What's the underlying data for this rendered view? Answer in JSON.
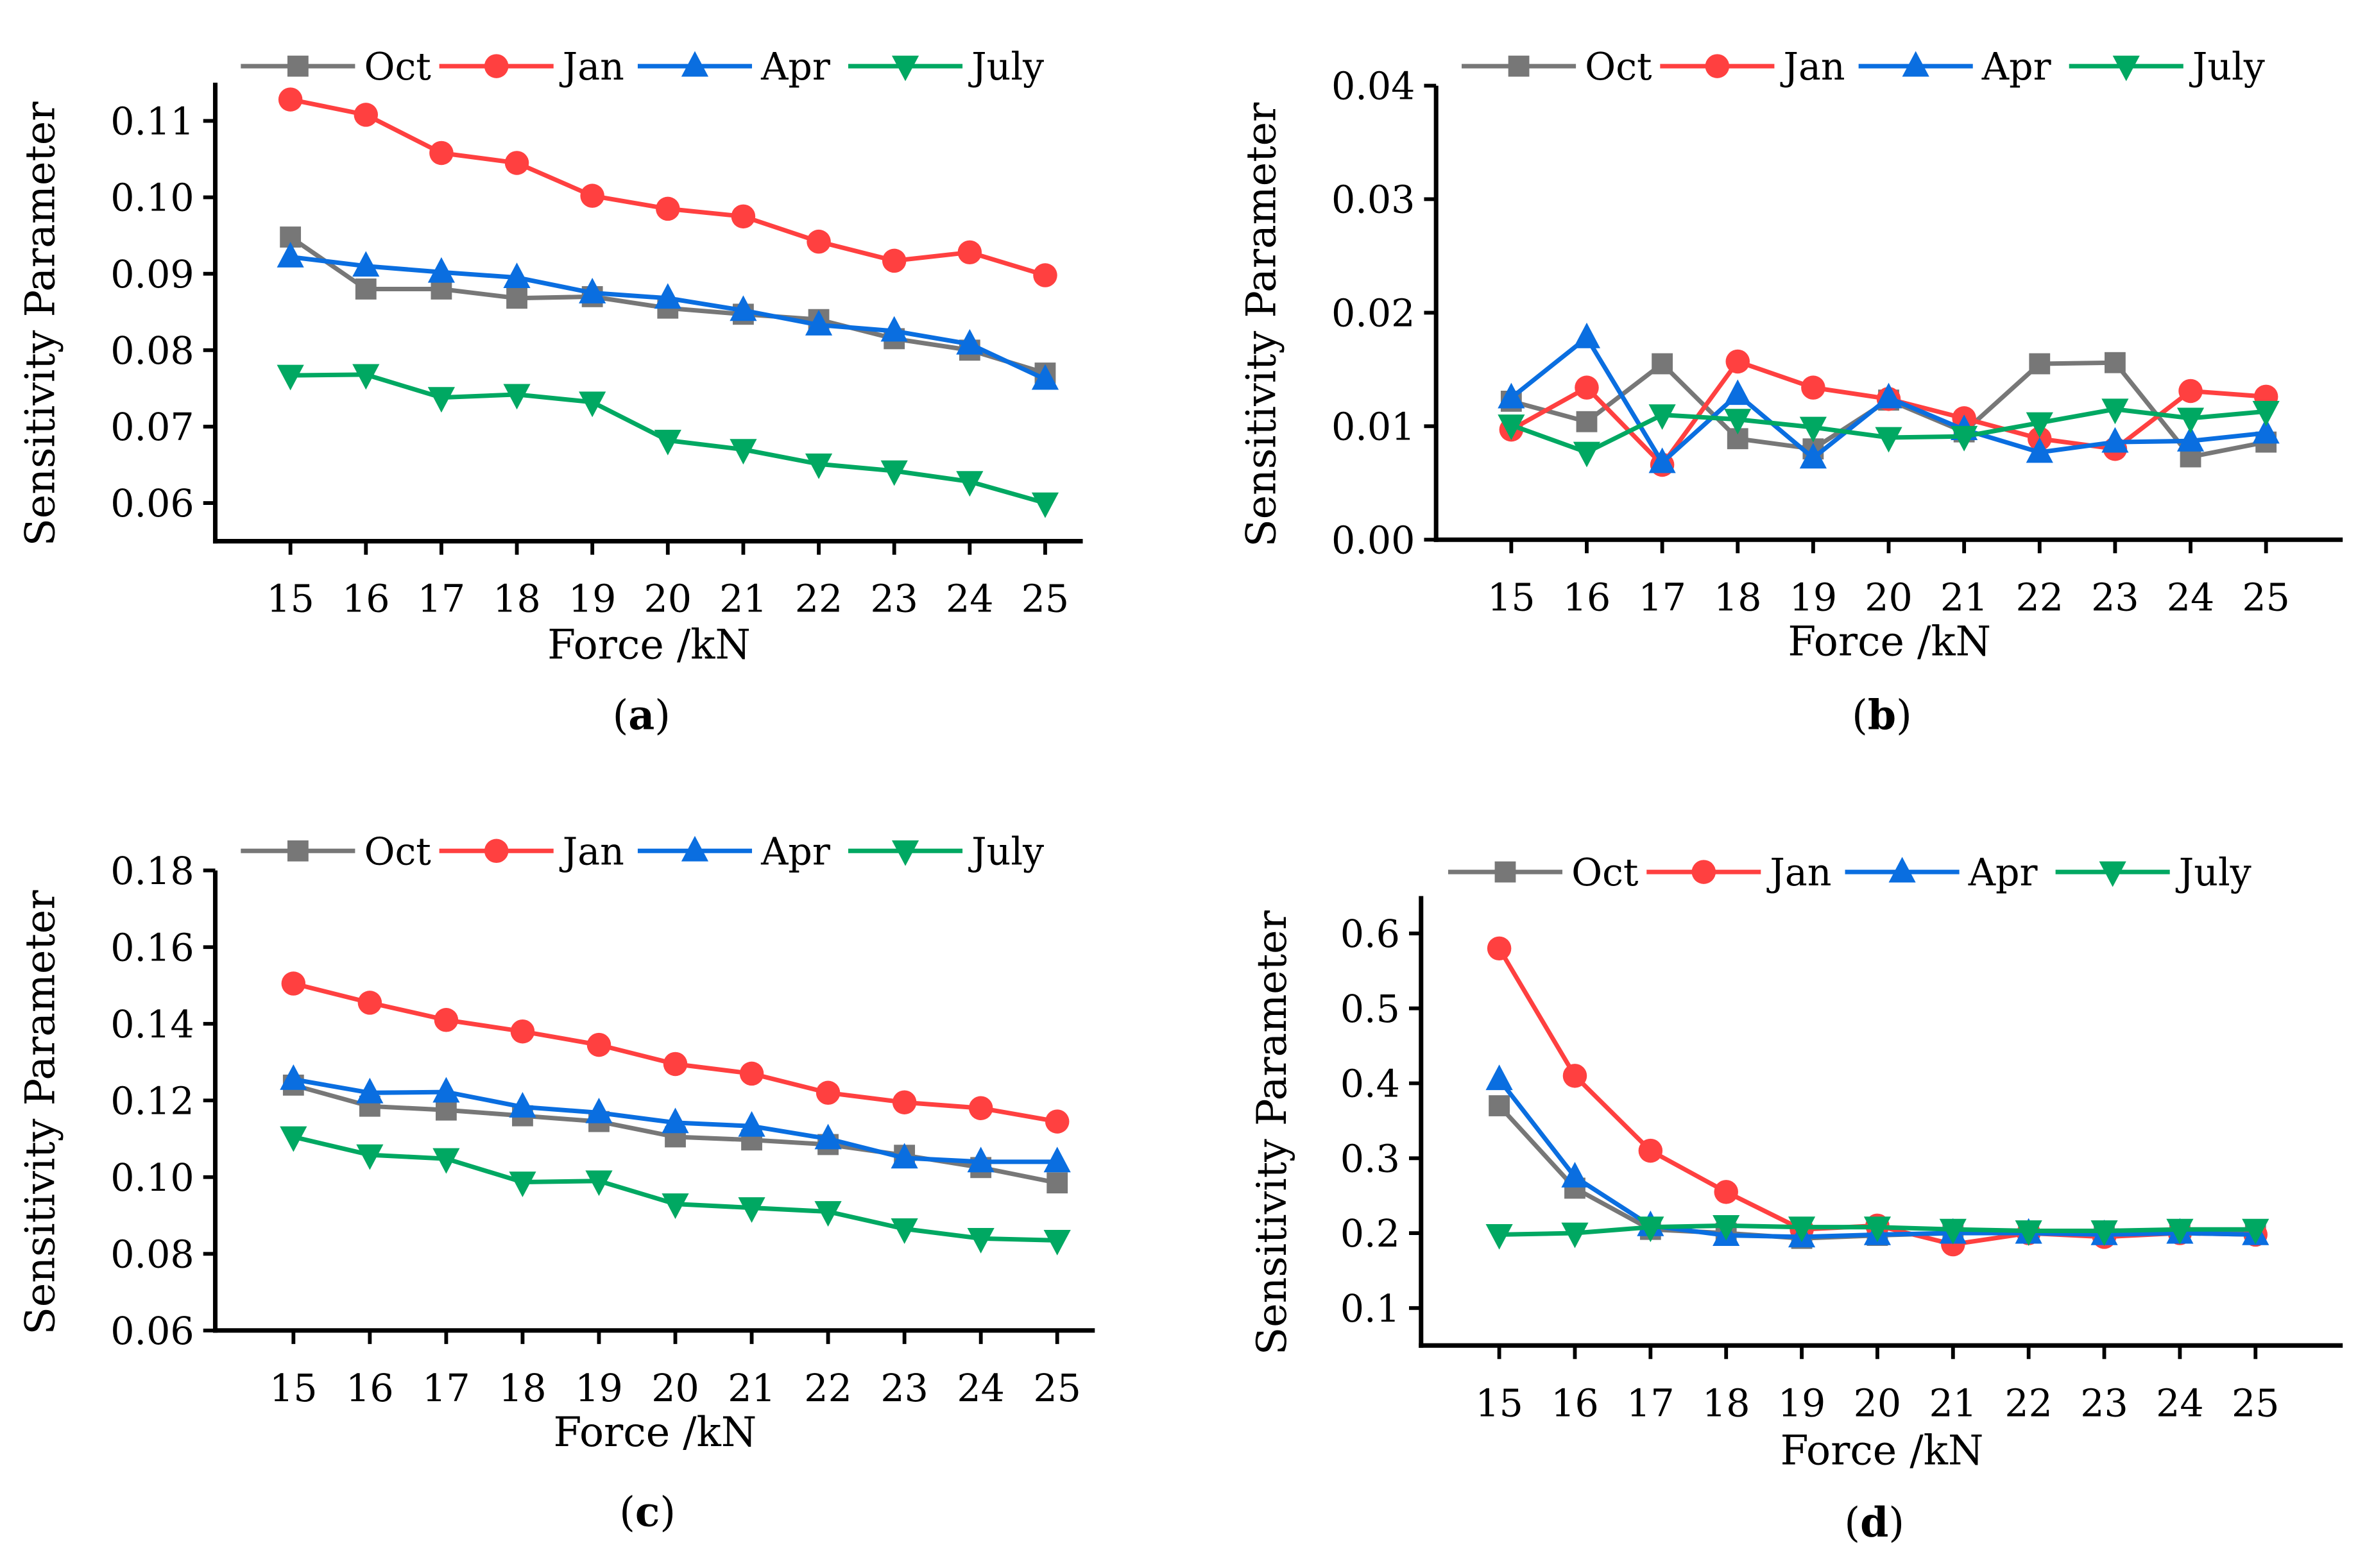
{
  "colors": {
    "Oct": "#777777",
    "Jan": "#ff4040",
    "Apr": "#0a6ee0",
    "July": "#00a862"
  },
  "markers": {
    "Oct": "square",
    "Jan": "circle",
    "Apr": "triangle-up",
    "July": "triangle-down"
  },
  "chart_data": [
    {
      "type": "line",
      "caption_letter": "a",
      "xlabel": "Force /kN",
      "ylabel": "Sensitivity Parameter",
      "x": [
        15,
        16,
        17,
        18,
        19,
        20,
        21,
        22,
        23,
        24,
        25
      ],
      "ylim": [
        0.055,
        0.115
      ],
      "yticks": [
        "0.06",
        "0.07",
        "0.08",
        "0.09",
        "0.10",
        "0.11"
      ],
      "series": [
        {
          "name": "Oct",
          "values": [
            0.0948,
            0.088,
            0.088,
            0.0868,
            0.087,
            0.0855,
            0.0847,
            0.084,
            0.0815,
            0.08,
            0.077
          ]
        },
        {
          "name": "Jan",
          "values": [
            0.1128,
            0.1108,
            0.1058,
            0.1045,
            0.1002,
            0.0985,
            0.0975,
            0.0942,
            0.0917,
            0.0928,
            0.0898
          ]
        },
        {
          "name": "Apr",
          "values": [
            0.0922,
            0.091,
            0.0902,
            0.0895,
            0.0875,
            0.0868,
            0.0852,
            0.0833,
            0.0825,
            0.0808,
            0.0762
          ]
        },
        {
          "name": "July",
          "values": [
            0.0767,
            0.0768,
            0.0738,
            0.0742,
            0.0732,
            0.0682,
            0.067,
            0.0651,
            0.0642,
            0.0628,
            0.06
          ]
        }
      ]
    },
    {
      "type": "line",
      "caption_letter": "b",
      "xlabel": "Force /kN",
      "ylabel": "Sensitivity Parameter",
      "x": [
        15,
        16,
        17,
        18,
        19,
        20,
        21,
        22,
        23,
        24,
        25
      ],
      "ylim": [
        0.0,
        0.04
      ],
      "yticks": [
        "0.00",
        "0.01",
        "0.02",
        "0.03",
        "0.04"
      ],
      "series": [
        {
          "name": "Oct",
          "values": [
            0.0122,
            0.0104,
            0.0155,
            0.0089,
            0.008,
            0.0123,
            0.0095,
            0.0155,
            0.0156,
            0.0073,
            0.0086
          ]
        },
        {
          "name": "Jan",
          "values": [
            0.0097,
            0.0134,
            0.0066,
            0.0157,
            0.0134,
            0.0124,
            0.0107,
            0.0089,
            0.008,
            0.0131,
            0.0126
          ]
        },
        {
          "name": "Apr",
          "values": [
            0.0125,
            0.0178,
            0.0068,
            0.0128,
            0.0072,
            0.0125,
            0.0097,
            0.0077,
            0.0086,
            0.0087,
            0.0094
          ]
        },
        {
          "name": "July",
          "values": [
            0.0101,
            0.0077,
            0.011,
            0.0106,
            0.0099,
            0.009,
            0.0091,
            0.0103,
            0.0115,
            0.0107,
            0.0113
          ]
        }
      ]
    },
    {
      "type": "line",
      "caption_letter": "c",
      "xlabel": "Force /kN",
      "ylabel": "Sensitivity Parameter",
      "x": [
        15,
        16,
        17,
        18,
        19,
        20,
        21,
        22,
        23,
        24,
        25
      ],
      "ylim": [
        0.06,
        0.18
      ],
      "yticks": [
        "0.06",
        "0.08",
        "0.10",
        "0.12",
        "0.14",
        "0.16",
        "0.18"
      ],
      "series": [
        {
          "name": "Oct",
          "values": [
            0.124,
            0.1185,
            0.1175,
            0.116,
            0.1145,
            0.1105,
            0.1097,
            0.1085,
            0.1057,
            0.1025,
            0.0985
          ]
        },
        {
          "name": "Jan",
          "values": [
            0.1505,
            0.1455,
            0.141,
            0.138,
            0.1345,
            0.1295,
            0.127,
            0.122,
            0.1195,
            0.118,
            0.1145
          ]
        },
        {
          "name": "Apr",
          "values": [
            0.1255,
            0.122,
            0.1222,
            0.1183,
            0.1168,
            0.1142,
            0.1133,
            0.11,
            0.105,
            0.104,
            0.104
          ]
        },
        {
          "name": "July",
          "values": [
            0.1105,
            0.1058,
            0.1048,
            0.0987,
            0.099,
            0.093,
            0.092,
            0.091,
            0.0865,
            0.084,
            0.0835
          ]
        }
      ]
    },
    {
      "type": "line",
      "caption_letter": "d",
      "xlabel": "Force /kN",
      "ylabel": "Sensitivity Parameter",
      "x": [
        15,
        16,
        17,
        18,
        19,
        20,
        21,
        22,
        23,
        24,
        25
      ],
      "ylim": [
        0.05,
        0.65
      ],
      "yticks": [
        "0.1",
        "0.2",
        "0.3",
        "0.4",
        "0.5",
        "0.6"
      ],
      "series": [
        {
          "name": "Oct",
          "values": [
            0.37,
            0.26,
            0.205,
            0.2,
            0.193,
            0.197,
            0.2,
            0.2,
            0.2,
            0.2,
            0.2
          ]
        },
        {
          "name": "Jan",
          "values": [
            0.58,
            0.41,
            0.31,
            0.255,
            0.205,
            0.21,
            0.185,
            0.2,
            0.195,
            0.2,
            0.198
          ]
        },
        {
          "name": "Apr",
          "values": [
            0.405,
            0.275,
            0.21,
            0.197,
            0.195,
            0.198,
            0.2,
            0.2,
            0.198,
            0.2,
            0.198
          ]
        },
        {
          "name": "July",
          "values": [
            0.198,
            0.2,
            0.208,
            0.21,
            0.208,
            0.208,
            0.205,
            0.203,
            0.203,
            0.205,
            0.205
          ]
        }
      ]
    }
  ]
}
